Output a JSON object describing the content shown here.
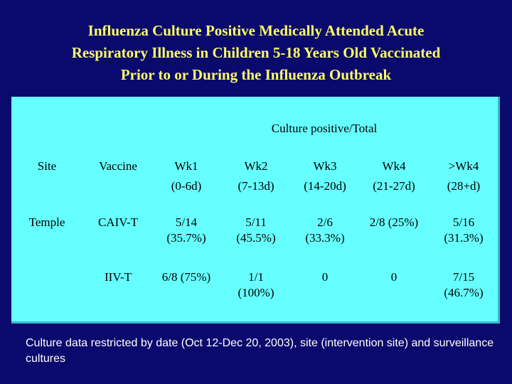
{
  "title": {
    "line1": "Influenza Culture Positive Medically Attended Acute",
    "line2": "Respiratory Illness in Children 5-18 Years Old Vaccinated",
    "line3": "Prior to or During the Influenza Outbreak"
  },
  "table": {
    "group_header": "Culture positive/Total",
    "columns": {
      "site": "Site",
      "vaccine": "Vaccine",
      "wk1": {
        "label": "Wk1",
        "range": "(0-6d)"
      },
      "wk2": {
        "label": "Wk2",
        "range": "(7-13d)"
      },
      "wk3": {
        "label": "Wk3",
        "range": "(14-20d)"
      },
      "wk4": {
        "label": "Wk4",
        "range": "(21-27d)"
      },
      "wk5": {
        "label": ">Wk4",
        "range": "(28+d)"
      }
    },
    "rows": [
      {
        "site": "Temple",
        "vaccine": "CAIV-T",
        "wk1": [
          "5/14",
          "(35.7%)"
        ],
        "wk2": [
          "5/11",
          "(45.5%)"
        ],
        "wk3": [
          "2/6",
          "(33.3%)"
        ],
        "wk4": [
          "2/8 (25%)"
        ],
        "wk5": [
          "5/16",
          "(31.3%)"
        ]
      },
      {
        "site": "",
        "vaccine": "IIV-T",
        "wk1": [
          "6/8 (75%)"
        ],
        "wk2": [
          "1/1",
          "(100%)"
        ],
        "wk3": [
          "0"
        ],
        "wk4": [
          "0"
        ],
        "wk5": [
          "7/15",
          "(46.7%)"
        ]
      }
    ]
  },
  "footnote": "Culture data restricted by date (Oct 12-Dec 20, 2003), site (intervention site) and surveillance cultures"
}
